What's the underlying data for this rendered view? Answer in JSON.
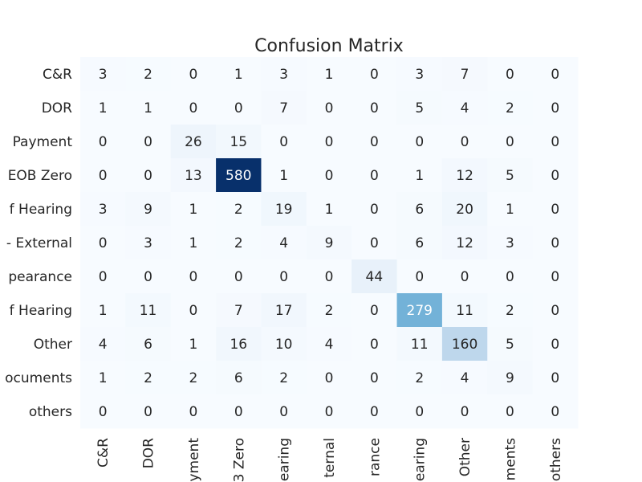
{
  "chart_data": {
    "type": "heatmap",
    "title": "Confusion Matrix",
    "xlabel": "",
    "ylabel": "",
    "colormap": "Blues",
    "color_low": "#f7fbff",
    "color_high": "#08306b",
    "value_range": [
      0,
      580
    ],
    "row_labels": [
      "C&R",
      "DOR",
      "Payment",
      "EOB Zero",
      "f Hearing",
      "- External",
      "pearance",
      "f Hearing",
      "Other",
      "ocuments",
      "others"
    ],
    "col_labels": [
      "C&R",
      "DOR",
      "yment",
      "3 Zero",
      "earing",
      "ternal",
      "rance",
      "earing",
      "Other",
      "ments",
      "others"
    ],
    "values": [
      [
        3,
        2,
        0,
        1,
        3,
        1,
        0,
        3,
        7,
        0,
        0
      ],
      [
        1,
        1,
        0,
        0,
        7,
        0,
        0,
        5,
        4,
        2,
        0
      ],
      [
        0,
        0,
        26,
        15,
        0,
        0,
        0,
        0,
        0,
        0,
        0
      ],
      [
        0,
        0,
        13,
        580,
        1,
        0,
        0,
        1,
        12,
        5,
        0
      ],
      [
        3,
        9,
        1,
        2,
        19,
        1,
        0,
        6,
        20,
        1,
        0
      ],
      [
        0,
        3,
        1,
        2,
        4,
        9,
        0,
        6,
        12,
        3,
        0
      ],
      [
        0,
        0,
        0,
        0,
        0,
        0,
        44,
        0,
        0,
        0,
        0
      ],
      [
        1,
        11,
        0,
        7,
        17,
        2,
        0,
        279,
        11,
        2,
        0
      ],
      [
        4,
        6,
        1,
        16,
        10,
        4,
        0,
        11,
        160,
        5,
        0
      ],
      [
        1,
        2,
        2,
        6,
        2,
        0,
        0,
        2,
        4,
        9,
        0
      ],
      [
        0,
        0,
        0,
        0,
        0,
        0,
        0,
        0,
        0,
        0,
        0
      ]
    ],
    "grid": false,
    "colorbar": false
  }
}
